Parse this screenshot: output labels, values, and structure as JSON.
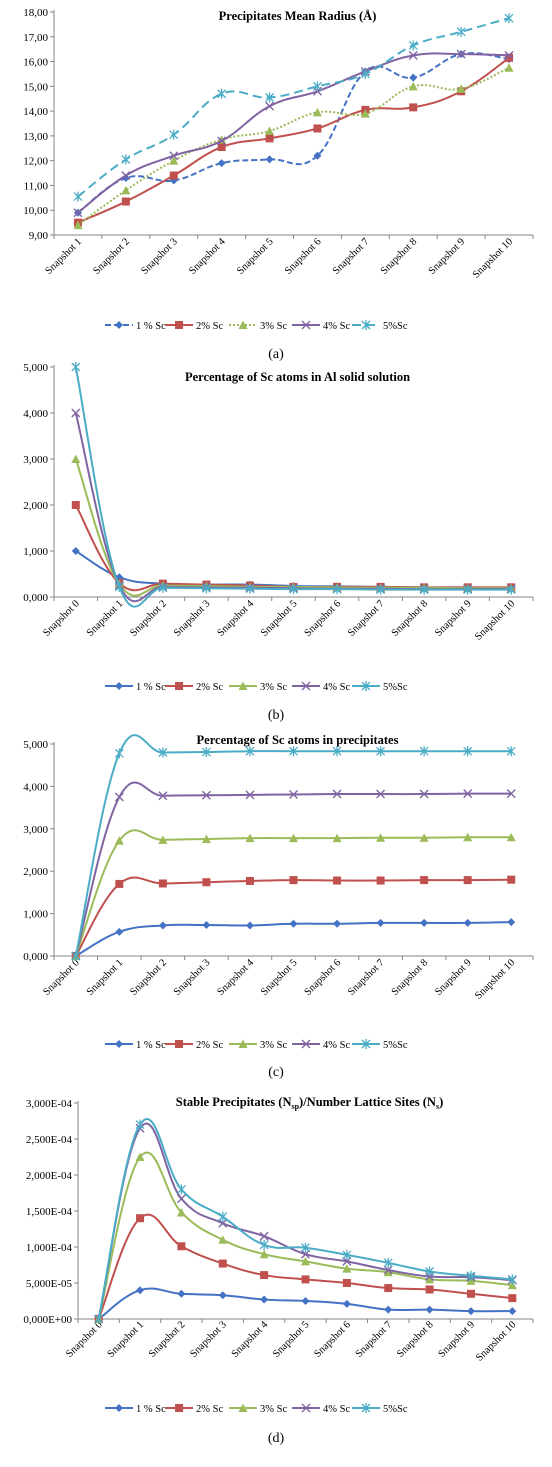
{
  "figure": {
    "captions": [
      "(a)",
      "(b)",
      "(c)",
      "(d)"
    ]
  },
  "chart_data": [
    {
      "type": "line",
      "title": "Precipitates Mean Radius (Å)",
      "categories": [
        "Snapshot 1",
        "Snapshot 2",
        "Snapshot 3",
        "Snapshot 4",
        "Snapshot 5",
        "Snapshot 6",
        "Snapshot 7",
        "Snapshot 8",
        "Snapshot 9",
        "Snapshot 10"
      ],
      "ylim": [
        9,
        18
      ],
      "yticks": [
        "9,00",
        "10,00",
        "11,00",
        "12,00",
        "13,00",
        "14,00",
        "15,00",
        "16,00",
        "17,00",
        "18,00"
      ],
      "grid": false,
      "legend": "bottom",
      "smooth": true,
      "series": [
        {
          "name": "1 % Sc",
          "color": "#4472c4",
          "dash": "6,3",
          "marker": "diamond",
          "values": [
            9.9,
            11.3,
            11.2,
            11.9,
            12.05,
            12.2,
            15.6,
            15.35,
            16.3,
            16.1
          ]
        },
        {
          "name": "2% Sc",
          "color": "#c0504d",
          "dash": "",
          "marker": "square",
          "values": [
            9.5,
            10.35,
            11.4,
            12.55,
            12.9,
            13.3,
            14.05,
            14.15,
            14.8,
            16.15
          ]
        },
        {
          "name": "3% Sc",
          "color": "#9bbb59",
          "dash": "2,2",
          "marker": "triangle",
          "values": [
            9.4,
            10.8,
            12.0,
            12.85,
            13.2,
            13.95,
            13.9,
            15.0,
            14.9,
            15.75
          ]
        },
        {
          "name": "4% Sc",
          "color": "#8064a2",
          "dash": "",
          "marker": "x",
          "values": [
            9.9,
            11.4,
            12.2,
            12.8,
            14.2,
            14.8,
            15.6,
            16.25,
            16.3,
            16.25
          ]
        },
        {
          "name": "5%Sc",
          "color": "#4bacc6",
          "dash": "9,5",
          "marker": "star",
          "values": [
            10.55,
            12.05,
            13.05,
            14.7,
            14.55,
            15.0,
            15.5,
            16.65,
            17.2,
            17.75
          ]
        }
      ]
    },
    {
      "type": "line",
      "title": "Percentage of Sc atoms in Al solid solution",
      "categories": [
        "Snapshot 0",
        "Snapshot 1",
        "Snapshot 2",
        "Snapshot 3",
        "Snapshot 4",
        "Snapshot 5",
        "Snapshot 6",
        "Snapshot 7",
        "Snapshot 8",
        "Snapshot 9",
        "Snapshot 10"
      ],
      "ylim": [
        0,
        5
      ],
      "yticks": [
        "0,000",
        "1,000",
        "2,000",
        "3,000",
        "4,000",
        "5,000"
      ],
      "grid": false,
      "legend": "bottom",
      "smooth": true,
      "series": [
        {
          "name": "1 % Sc",
          "color": "#4472c4",
          "dash": "",
          "marker": "diamond",
          "values": [
            1.0,
            0.43,
            0.29,
            0.27,
            0.27,
            0.24,
            0.23,
            0.22,
            0.21,
            0.21,
            0.2
          ]
        },
        {
          "name": "2% Sc",
          "color": "#c0504d",
          "dash": "",
          "marker": "square",
          "values": [
            2.0,
            0.3,
            0.29,
            0.27,
            0.25,
            0.22,
            0.22,
            0.22,
            0.21,
            0.21,
            0.21
          ]
        },
        {
          "name": "3% Sc",
          "color": "#9bbb59",
          "dash": "",
          "marker": "triangle",
          "values": [
            3.0,
            0.28,
            0.25,
            0.24,
            0.22,
            0.22,
            0.21,
            0.2,
            0.2,
            0.19,
            0.19
          ]
        },
        {
          "name": "4% Sc",
          "color": "#8064a2",
          "dash": "",
          "marker": "x",
          "values": [
            4.0,
            0.25,
            0.22,
            0.21,
            0.2,
            0.19,
            0.18,
            0.18,
            0.17,
            0.17,
            0.17
          ]
        },
        {
          "name": "5%Sc",
          "color": "#4bacc6",
          "dash": "",
          "marker": "star",
          "values": [
            5.0,
            0.22,
            0.2,
            0.19,
            0.18,
            0.17,
            0.17,
            0.16,
            0.16,
            0.16,
            0.16
          ]
        }
      ]
    },
    {
      "type": "line",
      "title": "Percentage of Sc atoms in precipitates",
      "categories": [
        "Snapshot 0",
        "Snapshot 1",
        "Snapshot 2",
        "Snapshot 3",
        "Snapshot 4",
        "Snapshot 5",
        "Snapshot 6",
        "Snapshot 7",
        "Snapshot 8",
        "Snapshot 9",
        "Snapshot 10"
      ],
      "ylim": [
        0,
        5
      ],
      "yticks": [
        "0,000",
        "1,000",
        "2,000",
        "3,000",
        "4,000",
        "5,000"
      ],
      "grid": false,
      "legend": "bottom",
      "smooth": true,
      "series": [
        {
          "name": "1 % Sc",
          "color": "#4472c4",
          "dash": "",
          "marker": "diamond",
          "values": [
            0,
            0.57,
            0.72,
            0.73,
            0.72,
            0.76,
            0.76,
            0.78,
            0.78,
            0.78,
            0.8
          ]
        },
        {
          "name": "2% Sc",
          "color": "#c0504d",
          "dash": "",
          "marker": "square",
          "values": [
            0,
            1.7,
            1.71,
            1.74,
            1.77,
            1.79,
            1.78,
            1.78,
            1.79,
            1.79,
            1.8
          ]
        },
        {
          "name": "3% Sc",
          "color": "#9bbb59",
          "dash": "",
          "marker": "triangle",
          "values": [
            0,
            2.72,
            2.74,
            2.76,
            2.78,
            2.78,
            2.78,
            2.79,
            2.79,
            2.8,
            2.8
          ]
        },
        {
          "name": "4% Sc",
          "color": "#8064a2",
          "dash": "",
          "marker": "x",
          "values": [
            0,
            3.75,
            3.78,
            3.79,
            3.8,
            3.81,
            3.82,
            3.82,
            3.82,
            3.83,
            3.83
          ]
        },
        {
          "name": "5%Sc",
          "color": "#4bacc6",
          "dash": "",
          "marker": "star",
          "values": [
            0,
            4.78,
            4.8,
            4.81,
            4.83,
            4.83,
            4.83,
            4.83,
            4.83,
            4.83,
            4.83
          ]
        }
      ]
    },
    {
      "type": "line",
      "title": "Stable Precipitates (N",
      "title_sub1": "sp",
      "title_mid": ")/Number Lattice Sites (N",
      "title_sub2": "s",
      "title_end": ")",
      "categories": [
        "Snapshot 0",
        "Snapshot 1",
        "Snapshot 2",
        "Snapshot 3",
        "Snapshot 4",
        "Snapshot 5",
        "Snapshot 6",
        "Snapshot 7",
        "Snapshot 8",
        "Snapshot 9",
        "Snapshot 10"
      ],
      "ylim": [
        0,
        0.0003
      ],
      "yticks": [
        "0,000E+00",
        "5,000E-05",
        "1,000E-04",
        "1,500E-04",
        "2,000E-04",
        "2,500E-04",
        "3,000E-04"
      ],
      "grid": false,
      "legend": "bottom",
      "smooth": true,
      "series": [
        {
          "name": "1 % Sc",
          "color": "#4472c4",
          "dash": "",
          "marker": "diamond",
          "values": [
            0,
            4e-05,
            3.5e-05,
            3.3e-05,
            2.7e-05,
            2.5e-05,
            2.1e-05,
            1.3e-05,
            1.3e-05,
            1.1e-05,
            1.1e-05
          ]
        },
        {
          "name": "2% Sc",
          "color": "#c0504d",
          "dash": "",
          "marker": "square",
          "values": [
            0,
            0.00014,
            0.000101,
            7.7e-05,
            6.1e-05,
            5.5e-05,
            5e-05,
            4.3e-05,
            4.1e-05,
            3.5e-05,
            2.9e-05
          ]
        },
        {
          "name": "3% Sc",
          "color": "#9bbb59",
          "dash": "",
          "marker": "triangle",
          "values": [
            0,
            0.000225,
            0.000148,
            0.00011,
            9e-05,
            8e-05,
            7e-05,
            6.5e-05,
            5.5e-05,
            5.3e-05,
            4.7e-05
          ]
        },
        {
          "name": "4% Sc",
          "color": "#8064a2",
          "dash": "",
          "marker": "x",
          "values": [
            0,
            0.000265,
            0.000167,
            0.000133,
            0.000115,
            9e-05,
            8e-05,
            6.8e-05,
            5.9e-05,
            5.8e-05,
            5.4e-05
          ]
        },
        {
          "name": "5%Sc",
          "color": "#4bacc6",
          "dash": "",
          "marker": "star",
          "values": [
            0,
            0.00027,
            0.00018,
            0.000142,
            0.000103,
            9.9e-05,
            8.9e-05,
            7.8e-05,
            6.6e-05,
            6e-05,
            5.5e-05
          ]
        }
      ]
    }
  ]
}
